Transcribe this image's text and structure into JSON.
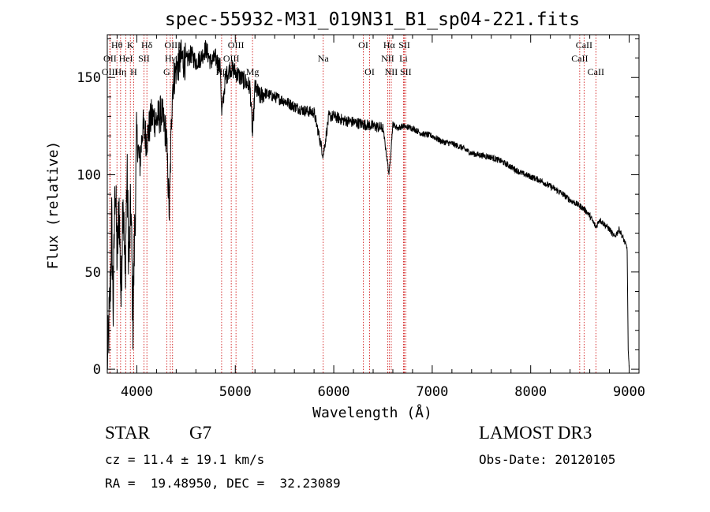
{
  "colors": {
    "line": "#000000",
    "marker": "#cc0000",
    "background": "#ffffff"
  },
  "chart_data": {
    "type": "line",
    "title": "spec-55932-M31_019N31_B1_sp04-221.fits",
    "xlabel": "Wavelength (Å)",
    "ylabel": "Flux (relative)",
    "xlim": [
      3700,
      9100
    ],
    "ylim": [
      -2,
      172
    ],
    "x_ticks": [
      4000,
      5000,
      6000,
      7000,
      8000,
      9000
    ],
    "y_ticks": [
      0,
      50,
      100,
      150
    ],
    "grid": false,
    "series": [
      {
        "name": "spectrum",
        "x": [
          3700,
          3730,
          3745,
          3760,
          3780,
          3800,
          3820,
          3840,
          3860,
          3880,
          3900,
          3920,
          3940,
          3960,
          3980,
          4000,
          4030,
          4060,
          4100,
          4150,
          4200,
          4250,
          4300,
          4330,
          4360,
          4400,
          4450,
          4500,
          4550,
          4600,
          4650,
          4700,
          4750,
          4800,
          4850,
          4861,
          4900,
          4950,
          5000,
          5050,
          5100,
          5150,
          5175,
          5200,
          5250,
          5300,
          5400,
          5500,
          5600,
          5700,
          5800,
          5893,
          5950,
          6000,
          6100,
          6200,
          6300,
          6400,
          6500,
          6562,
          6600,
          6650,
          6700,
          6800,
          6900,
          7000,
          7100,
          7200,
          7300,
          7400,
          7500,
          7600,
          7700,
          7800,
          7900,
          8000,
          8100,
          8200,
          8300,
          8400,
          8500,
          8550,
          8600,
          8662,
          8700,
          8800,
          8850,
          8900,
          8950,
          8980,
          8990,
          9000
        ],
        "y": [
          0,
          40,
          75,
          30,
          100,
          55,
          85,
          35,
          95,
          45,
          100,
          55,
          85,
          25,
          75,
          120,
          105,
          125,
          118,
          130,
          128,
          132,
          120,
          80,
          145,
          155,
          160,
          158,
          162,
          158,
          160,
          165,
          158,
          160,
          155,
          130,
          150,
          155,
          153,
          150,
          148,
          145,
          120,
          145,
          140,
          142,
          140,
          138,
          135,
          133,
          132,
          110,
          130,
          130,
          128,
          127,
          126,
          125,
          124,
          100,
          126,
          124,
          125,
          124,
          121,
          120,
          117,
          116,
          114,
          111,
          110,
          109,
          107,
          104,
          101,
          99,
          97,
          94,
          91,
          87,
          84,
          82,
          79,
          73,
          77,
          72,
          68,
          72,
          66,
          62,
          10,
          0
        ]
      }
    ],
    "line_labels": [
      {
        "text": "Hθ",
        "row": 1,
        "wave": 3798
      },
      {
        "text": "K",
        "row": 1,
        "wave": 3934
      },
      {
        "text": "Hδ",
        "row": 1,
        "wave": 4102
      },
      {
        "text": "OIII",
        "row": 1,
        "wave": 4363
      },
      {
        "text": "OIII",
        "row": 1,
        "wave": 5007
      },
      {
        "text": "OI",
        "row": 1,
        "wave": 6300
      },
      {
        "text": "Hα",
        "row": 1,
        "wave": 6563
      },
      {
        "text": "SII",
        "row": 1,
        "wave": 6717
      },
      {
        "text": "CaII",
        "row": 1,
        "wave": 8542
      },
      {
        "text": "OII",
        "row": 2,
        "wave": 3727
      },
      {
        "text": "HeI",
        "row": 2,
        "wave": 3889
      },
      {
        "text": "SII",
        "row": 2,
        "wave": 4072
      },
      {
        "text": "Hγ",
        "row": 2,
        "wave": 4340
      },
      {
        "text": "OIII",
        "row": 2,
        "wave": 4959
      },
      {
        "text": "Na",
        "row": 2,
        "wave": 5893
      },
      {
        "text": "NII",
        "row": 2,
        "wave": 6548
      },
      {
        "text": "Li",
        "row": 2,
        "wave": 6708
      },
      {
        "text": "CaII",
        "row": 2,
        "wave": 8498
      },
      {
        "text": "OIII",
        "row": 3,
        "wave": 3726
      },
      {
        "text": "Hη",
        "row": 3,
        "wave": 3835
      },
      {
        "text": "H",
        "row": 3,
        "wave": 3968
      },
      {
        "text": "G",
        "row": 3,
        "wave": 4304
      },
      {
        "text": "Hβ",
        "row": 3,
        "wave": 4861
      },
      {
        "text": "Mg",
        "row": 3,
        "wave": 5175
      },
      {
        "text": "OI",
        "row": 3,
        "wave": 6364
      },
      {
        "text": "NII",
        "row": 3,
        "wave": 6584
      },
      {
        "text": "SII",
        "row": 3,
        "wave": 6731
      },
      {
        "text": "CaII",
        "row": 3,
        "wave": 8662
      }
    ],
    "marker_lines": [
      3726,
      3729,
      3798,
      3835,
      3889,
      3934,
      3968,
      4072,
      4102,
      4304,
      4340,
      4363,
      4861,
      4959,
      5007,
      5175,
      5893,
      6300,
      6364,
      6548,
      6563,
      6584,
      6708,
      6717,
      6731,
      8498,
      8542,
      8662
    ]
  },
  "info": {
    "object_type": "STAR",
    "subclass": "G7",
    "survey": "LAMOST DR3",
    "cz": "cz = 11.4 ± 19.1 km/s",
    "obs_date": "Obs-Date: 20120105",
    "coords": "RA =  19.48950, DEC =  32.23089"
  }
}
